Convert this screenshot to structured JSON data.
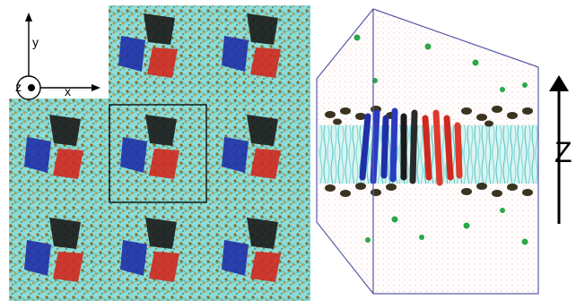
{
  "axes": {
    "y_label": "y",
    "x_label": "x",
    "z_label": "z",
    "z_big_label": "Z"
  },
  "colors": {
    "water": "#7fd7d2",
    "headgroup": "#8a6a2a",
    "protein_a": "#1f2fa8",
    "protein_b": "#1a1a1a",
    "protein_c": "#d0281e",
    "ion": "#2aa84a",
    "box": "#5a5aa8"
  }
}
